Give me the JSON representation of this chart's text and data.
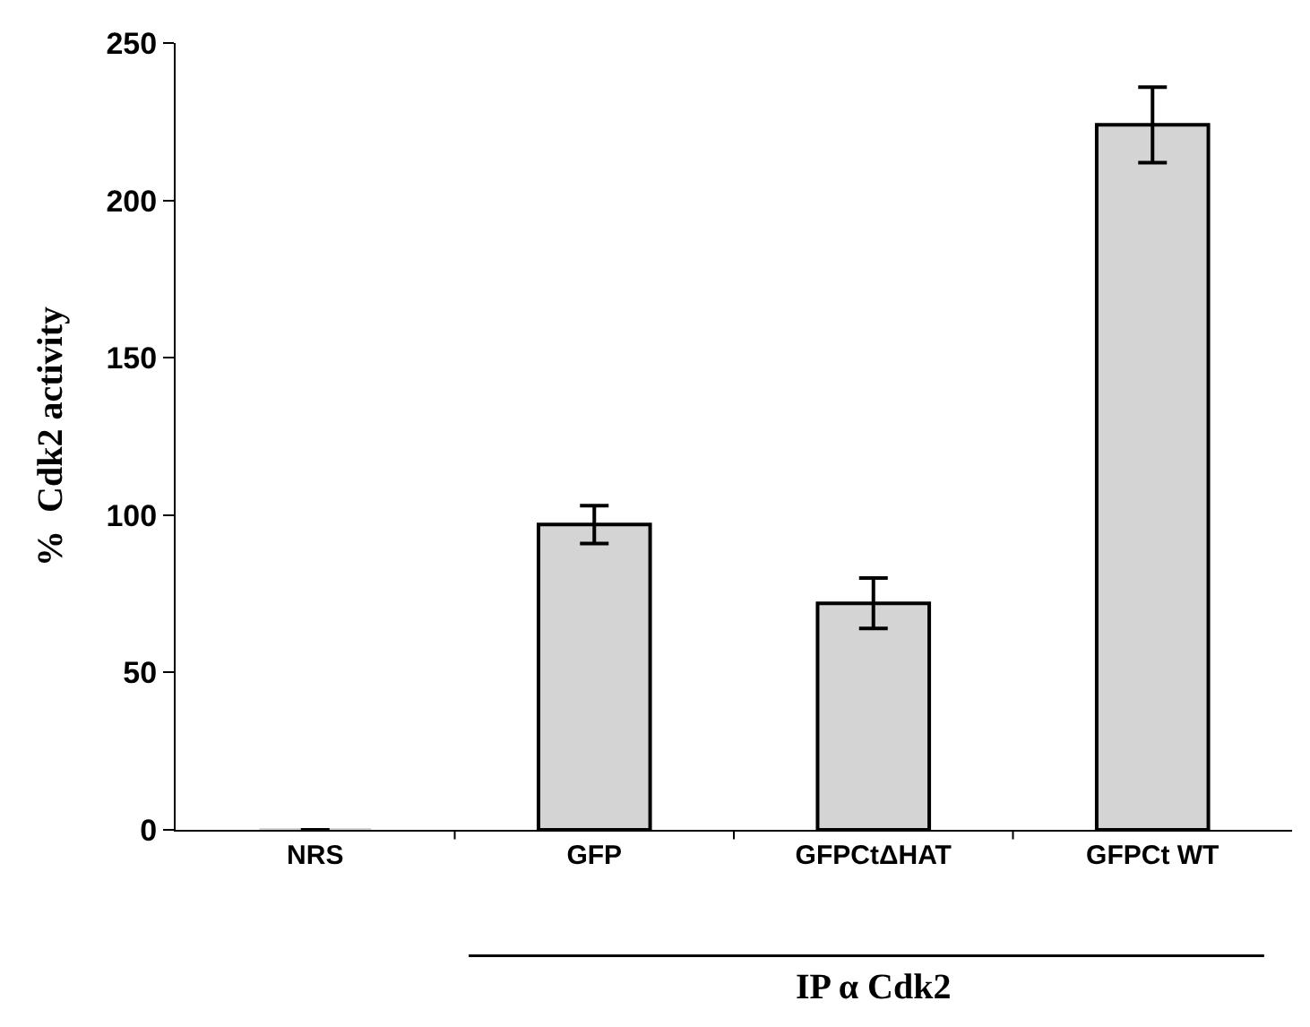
{
  "chart_data": {
    "type": "bar",
    "ylabel": "%  Cdk2 activity",
    "categories": [
      "NRS",
      "GFP",
      "GFPCtΔHAT",
      "GFPCt WT"
    ],
    "values": [
      0,
      97,
      72,
      224
    ],
    "errors": [
      null,
      6,
      8,
      12
    ],
    "color": "#d4d4d4",
    "ylim": [
      0,
      250
    ],
    "yticks": [
      0,
      50,
      100,
      150,
      200,
      250
    ],
    "grid": false,
    "annotations": [
      "IP α Cdk2"
    ]
  }
}
